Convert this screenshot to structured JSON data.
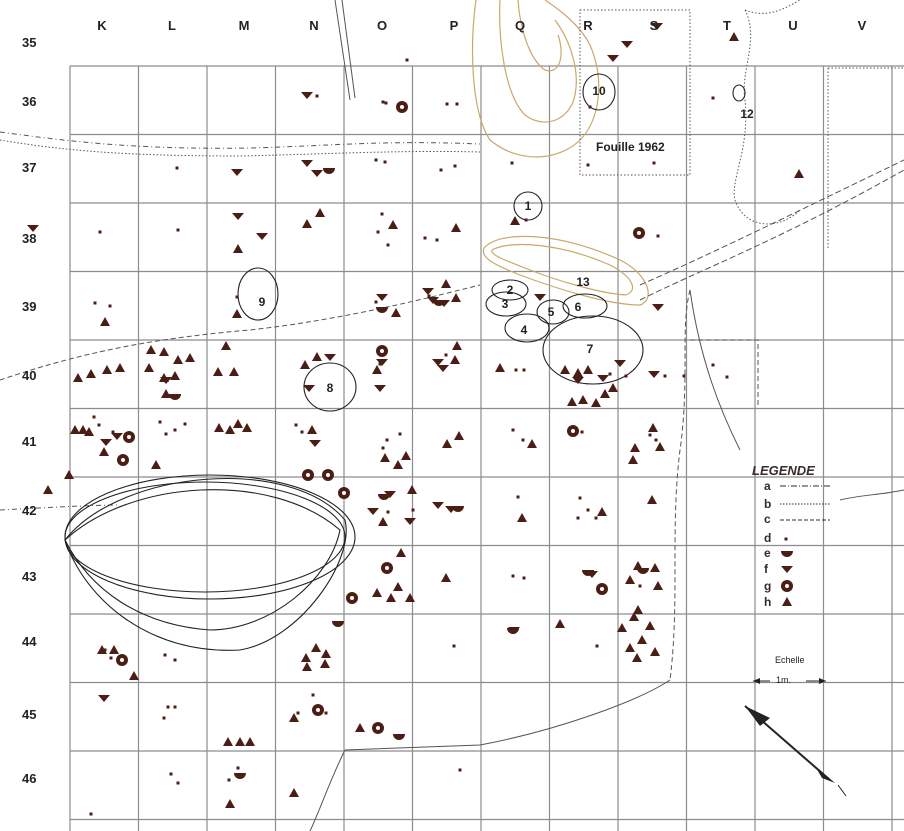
{
  "columns": [
    "K",
    "L",
    "M",
    "N",
    "O",
    "P",
    "Q",
    "R",
    "S",
    "T",
    "U",
    "V"
  ],
  "rows": [
    "35",
    "36",
    "37",
    "38",
    "39",
    "40",
    "41",
    "42",
    "43",
    "44",
    "45",
    "46"
  ],
  "features": [
    "1",
    "2",
    "3",
    "4",
    "5",
    "6",
    "7",
    "8",
    "9",
    "10",
    "12",
    "13"
  ],
  "excavation_label": "Fouille 1962",
  "legend": {
    "title": "LEGENDE",
    "keys": [
      "a",
      "b",
      "c",
      "d",
      "e",
      "f",
      "g",
      "h"
    ]
  },
  "scale": {
    "title": "Echelle",
    "unit": "1m."
  },
  "colors": {
    "ink": "#3a2a2a",
    "grid": "#8c8c8c",
    "contour": "#c9a96a",
    "symbol": "#4a1e14"
  }
}
